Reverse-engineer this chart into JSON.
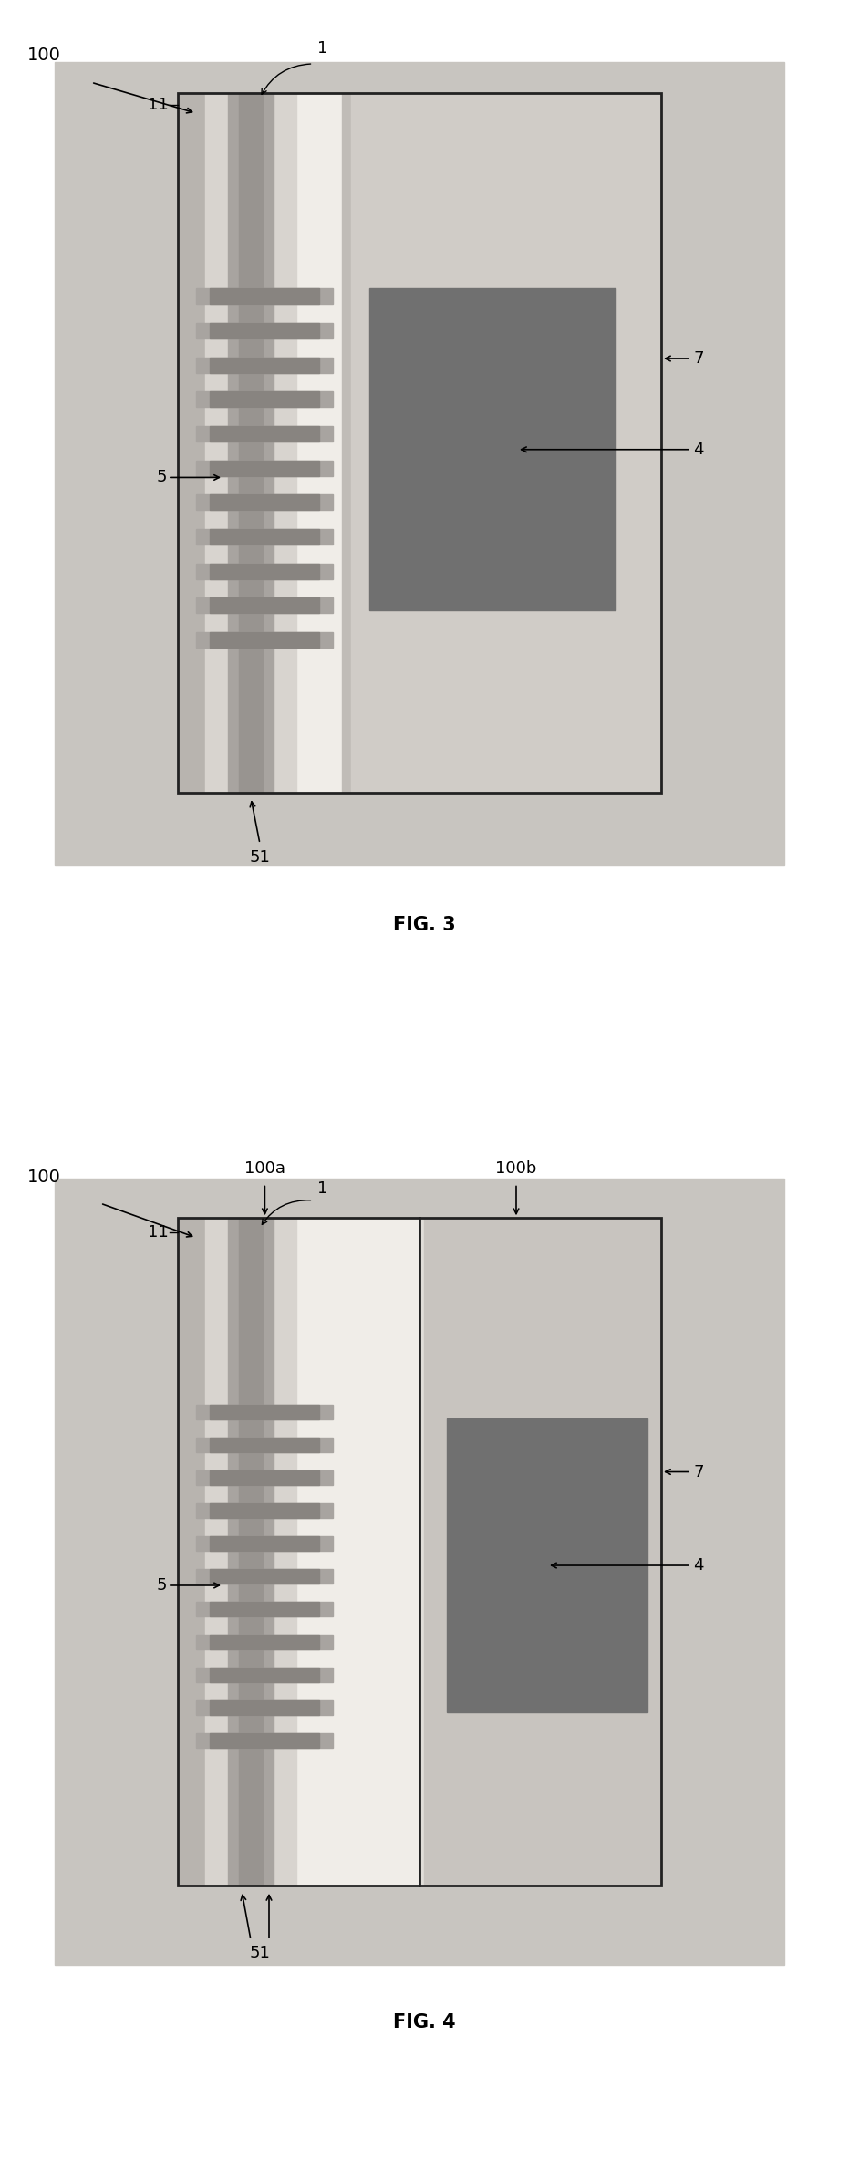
{
  "fig3": {
    "page_bg": "#ffffff",
    "outer_bg": "#c8c5c0",
    "device_bg": "#f0ede8",
    "left_edge_col": "#b8b4af",
    "left_inner_bg": "#e8e4df",
    "chan_bg": "#d8d4cf",
    "chan_dark": "#a8a4a0",
    "chan_center": "#989490",
    "right_region": "#c0bcb7",
    "right_inner_bg": "#d0ccc7",
    "dark_square": "#707070",
    "finger_dark": "#888480",
    "finger_mid": "#a8a4a0",
    "title": "FIG. 3"
  },
  "fig4": {
    "page_bg": "#ffffff",
    "outer_bg": "#c8c5c0",
    "left_half_bg": "#f0ede8",
    "right_half_bg": "#e0ddd8",
    "left_edge_col": "#b8b4af",
    "left_inner_bg": "#e8e4df",
    "chan_bg": "#d8d4cf",
    "chan_dark": "#a8a4a0",
    "chan_center": "#989490",
    "right_region": "#c8c4bf",
    "dark_square": "#707070",
    "finger_dark": "#888480",
    "finger_mid": "#a8a4a0",
    "title": "FIG. 4"
  },
  "n_fingers": 11,
  "label_fontsize": 12
}
